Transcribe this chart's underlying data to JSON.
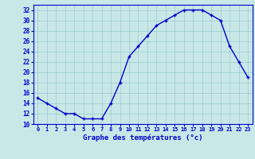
{
  "hours": [
    0,
    1,
    2,
    3,
    4,
    5,
    6,
    7,
    8,
    9,
    10,
    11,
    12,
    13,
    14,
    15,
    16,
    17,
    18,
    19,
    20,
    21,
    22,
    23
  ],
  "temps": [
    15,
    14,
    13,
    12,
    12,
    11,
    11,
    11,
    14,
    18,
    23,
    25,
    27,
    29,
    30,
    31,
    32,
    32,
    32,
    31,
    30,
    25,
    22,
    19
  ],
  "line_color": "#0000cc",
  "bg_color": "#c8e8e8",
  "grid_color": "#99cccc",
  "xlabel": "Graphe des températures (°c)",
  "xlabel_color": "#0000cc",
  "tick_color": "#0000cc",
  "ylim": [
    10,
    33
  ],
  "yticks": [
    10,
    12,
    14,
    16,
    18,
    20,
    22,
    24,
    26,
    28,
    30,
    32
  ],
  "marker": "+",
  "markersize": 3.5,
  "linewidth": 1.0
}
